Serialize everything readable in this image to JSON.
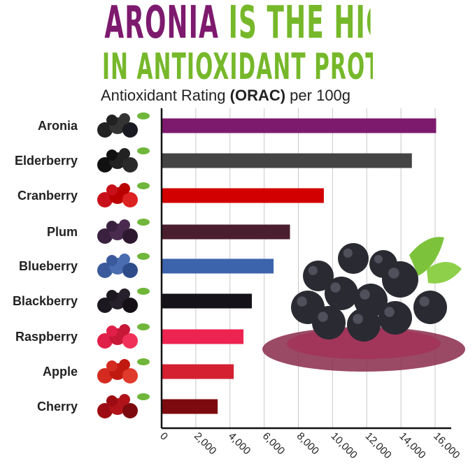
{
  "title": {
    "line1_highlight": "ARONIA",
    "line1_rest": "IS THE HIGHEST",
    "line2": "IN ANTIOXIDANT PROTECTION"
  },
  "subtitle": {
    "pre": "Antioxidant Rating ",
    "bold": "(ORAC)",
    "post": " per 100g"
  },
  "chart_data": {
    "type": "bar",
    "orientation": "horizontal",
    "categories": [
      "Aronia",
      "Elderberry",
      "Cranberry",
      "Plum",
      "Blueberry",
      "Blackberry",
      "Raspberry",
      "Apple",
      "Cherry"
    ],
    "values": [
      16060,
      14640,
      9490,
      7510,
      6550,
      5280,
      4790,
      4220,
      3280
    ],
    "colors": [
      "#7d1a6e",
      "#444444",
      "#d20000",
      "#4a1e2e",
      "#3c64ac",
      "#15121a",
      "#ee2450",
      "#d42030",
      "#7c0a0e"
    ],
    "xlim": [
      0,
      16000
    ],
    "xticks": [
      "0",
      "2,000",
      "4,000",
      "6,000",
      "8,000",
      "10,000",
      "12,000",
      "14,000",
      "16,000"
    ],
    "xtick_values": [
      0,
      2000,
      4000,
      6000,
      8000,
      10000,
      12000,
      14000,
      16000
    ],
    "grid": true,
    "xlabel": "",
    "ylabel": ""
  },
  "icons": [
    "aronia-berries",
    "elderberry-cluster",
    "cranberries",
    "plums",
    "blueberries",
    "blackberries",
    "raspberries",
    "apple",
    "cherries",
    "aronia-pile-with-powder"
  ]
}
